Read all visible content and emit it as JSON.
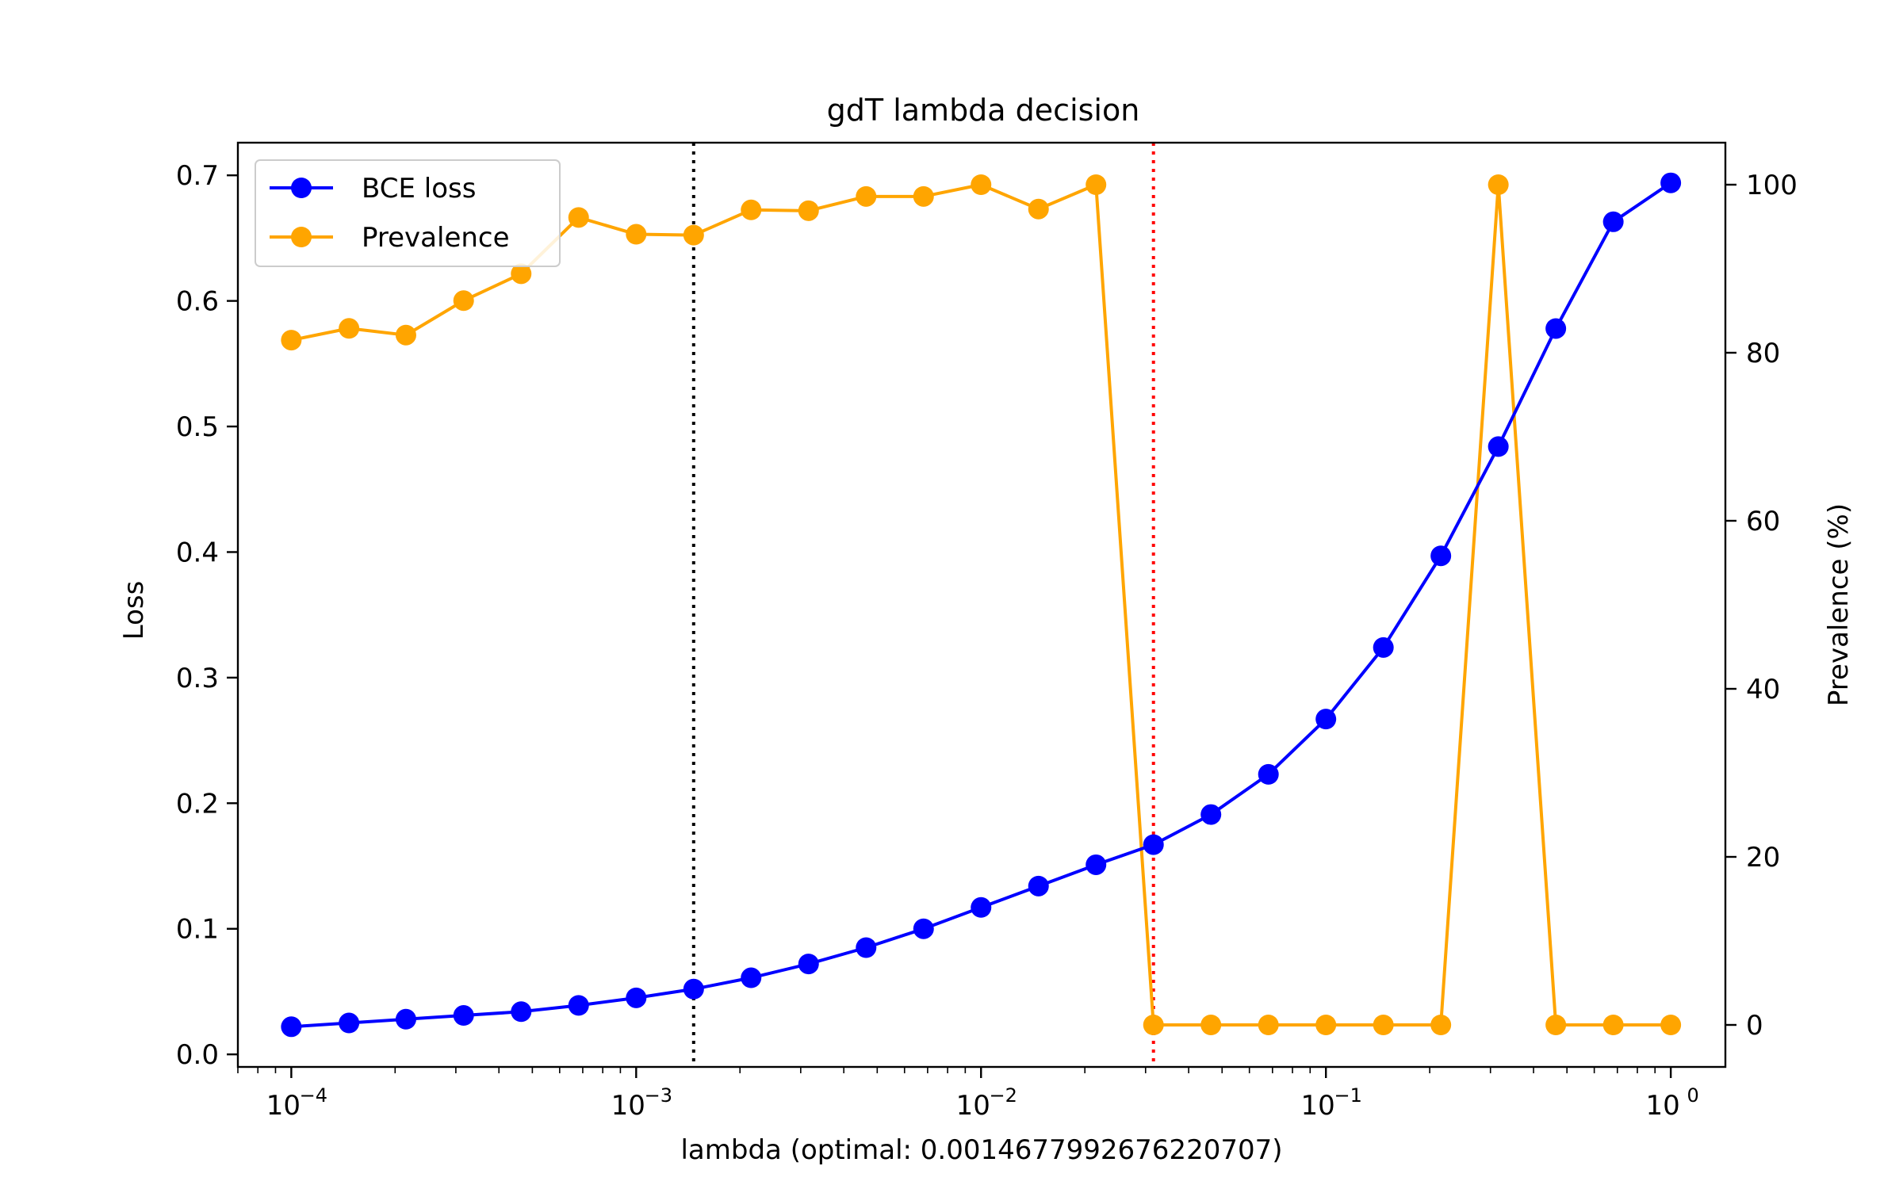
{
  "chart_data": {
    "type": "line",
    "title": "gdT lambda decision",
    "xlabel": "lambda (optimal: 0.0014677992676220707)",
    "ylabel": "Loss",
    "y2label": "Prevalence (%)",
    "xscale": "log",
    "xlim": [
      7e-05,
      1.44
    ],
    "ylim": [
      -0.01,
      0.726
    ],
    "y2lim": [
      -5,
      105
    ],
    "x_ticks": [
      {
        "value": 0.0001,
        "base": "10",
        "exp": "−4"
      },
      {
        "value": 0.001,
        "base": "10",
        "exp": "−3"
      },
      {
        "value": 0.01,
        "base": "10",
        "exp": "−2"
      },
      {
        "value": 0.1,
        "base": "10",
        "exp": "−1"
      },
      {
        "value": 1,
        "base": "10",
        "exp": "0"
      }
    ],
    "y_ticks": [
      "0.0",
      "0.1",
      "0.2",
      "0.3",
      "0.4",
      "0.5",
      "0.6",
      "0.7"
    ],
    "y2_ticks": [
      "0",
      "20",
      "40",
      "60",
      "80",
      "100"
    ],
    "x": [
      0.0001,
      0.000147,
      0.000215,
      0.000316,
      0.000464,
      0.000681,
      0.001,
      0.001468,
      0.002154,
      0.003162,
      0.004642,
      0.006813,
      0.01,
      0.014678,
      0.021544,
      0.031623,
      0.046416,
      0.068129,
      0.1,
      0.14678,
      0.215443,
      0.316228,
      0.464159,
      0.681292,
      1.0
    ],
    "series": [
      {
        "name": "BCE loss",
        "axis": "left",
        "color": "#0000ff",
        "values": [
          0.022,
          0.025,
          0.028,
          0.031,
          0.034,
          0.039,
          0.045,
          0.052,
          0.061,
          0.072,
          0.085,
          0.1,
          0.117,
          0.134,
          0.151,
          0.167,
          0.191,
          0.223,
          0.267,
          0.324,
          0.397,
          0.484,
          0.578,
          0.663,
          0.694
        ]
      },
      {
        "name": "Prevalence",
        "axis": "right",
        "color": "#ffa500",
        "values": [
          81.5,
          82.9,
          82.1,
          86.2,
          89.4,
          96.1,
          94.1,
          94.0,
          97.0,
          96.9,
          98.6,
          98.6,
          100,
          97.1,
          100,
          0,
          0,
          0,
          0,
          0,
          0,
          100,
          0,
          0,
          0
        ]
      }
    ],
    "vlines": [
      {
        "x": 0.0014677992676220707,
        "color": "#000000",
        "style": "dotted"
      },
      {
        "x": 0.031623,
        "color": "#ff0000",
        "style": "dotted"
      }
    ],
    "legend_position": "top-left",
    "grid": false
  }
}
